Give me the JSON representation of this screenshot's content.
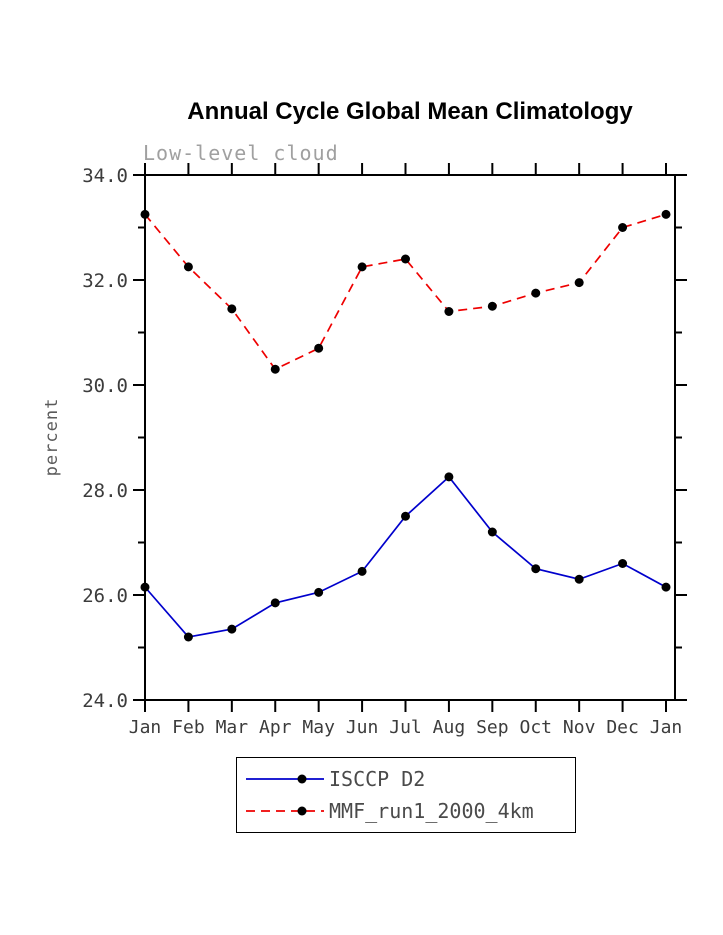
{
  "title": "Annual Cycle Global Mean Climatology",
  "subtitle": "Low-level cloud",
  "chart_data": {
    "type": "line",
    "categories": [
      "Jan",
      "Feb",
      "Mar",
      "Apr",
      "May",
      "Jun",
      "Jul",
      "Aug",
      "Sep",
      "Oct",
      "Nov",
      "Dec",
      "Jan"
    ],
    "ylabel": "percent",
    "ylim": [
      24.0,
      34.0
    ],
    "yticks": [
      24.0,
      26.0,
      28.0,
      30.0,
      32.0,
      34.0
    ],
    "ytick_labels": [
      "24.0",
      "26.0",
      "28.0",
      "30.0",
      "32.0",
      "34.0"
    ],
    "grid": false,
    "legend_position": "bottom-center",
    "axis_color": "#000000",
    "marker": {
      "shape": "circle",
      "color": "#000000"
    },
    "series": [
      {
        "name": "ISCCP D2",
        "style": "solid",
        "color": "#0000cc",
        "values": [
          26.15,
          25.2,
          25.35,
          25.85,
          26.05,
          26.45,
          27.5,
          28.25,
          27.2,
          26.5,
          26.3,
          26.6,
          26.15
        ]
      },
      {
        "name": "MMF_run1_2000_4km",
        "style": "dashed",
        "color": "#ee0000",
        "values": [
          33.25,
          32.25,
          31.45,
          30.3,
          30.7,
          32.25,
          32.4,
          31.4,
          31.5,
          31.75,
          31.95,
          33.0,
          33.25
        ]
      }
    ]
  }
}
